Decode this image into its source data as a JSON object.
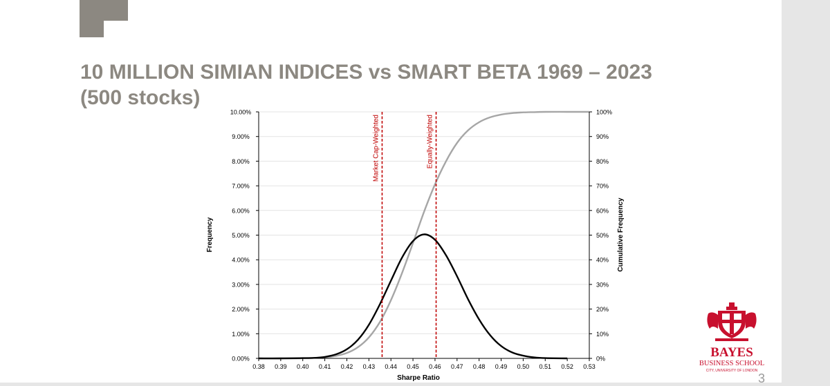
{
  "slide": {
    "title_line1": "10 MILLION SIMIAN INDICES vs SMART BETA 1969 – 2023",
    "title_line2": "(500 stocks)",
    "page_number": "3"
  },
  "logo": {
    "name": "BAYES",
    "line2": "BUSINESS SCHOOL",
    "line3": "CITY, UNIVERSITY OF LONDON",
    "color": "#c8102e"
  },
  "colors": {
    "title": "#8c8881",
    "brand_block": "#8c8881",
    "frequency_curve": "#000000",
    "cumulative_curve": "#a6a6a6",
    "reference_lines": "#c00000"
  },
  "chart_data": {
    "type": "line",
    "xlabel": "Sharpe Ratio",
    "ylabel": "Frequency",
    "y2label": "Cumulative Frequency",
    "xlim": [
      0.38,
      0.53
    ],
    "ylim": [
      0,
      0.1
    ],
    "y2lim": [
      0,
      1
    ],
    "x_ticks": [
      "0.38",
      "0.39",
      "0.40",
      "0.41",
      "0.42",
      "0.43",
      "0.44",
      "0.45",
      "0.46",
      "0.47",
      "0.48",
      "0.49",
      "0.50",
      "0.51",
      "0.52",
      "0.53"
    ],
    "y_ticks": [
      "0.00%",
      "1.00%",
      "2.00%",
      "3.00%",
      "4.00%",
      "5.00%",
      "6.00%",
      "7.00%",
      "8.00%",
      "9.00%",
      "10.00%"
    ],
    "y2_ticks": [
      "0%",
      "10%",
      "20%",
      "30%",
      "40%",
      "50%",
      "60%",
      "70%",
      "80%",
      "90%",
      "100%"
    ],
    "grid": true,
    "series": [
      {
        "name": "Frequency",
        "axis": "left",
        "x": [
          0.38,
          0.39,
          0.4,
          0.405,
          0.41,
          0.415,
          0.42,
          0.425,
          0.43,
          0.435,
          0.44,
          0.445,
          0.45,
          0.455,
          0.46,
          0.465,
          0.47,
          0.475,
          0.48,
          0.485,
          0.49,
          0.495,
          0.5,
          0.505,
          0.51,
          0.52
        ],
        "values": [
          0.0,
          0.0,
          0.0001,
          0.0002,
          0.0006,
          0.0016,
          0.0037,
          0.0075,
          0.0136,
          0.022,
          0.0315,
          0.0408,
          0.0476,
          0.0503,
          0.0481,
          0.0418,
          0.0333,
          0.024,
          0.0158,
          0.0094,
          0.005,
          0.0024,
          0.0011,
          0.0004,
          0.0001,
          0.0
        ]
      },
      {
        "name": "Cumulative Frequency",
        "axis": "right",
        "x": [
          0.38,
          0.39,
          0.4,
          0.41,
          0.415,
          0.42,
          0.425,
          0.43,
          0.435,
          0.44,
          0.445,
          0.45,
          0.455,
          0.46,
          0.465,
          0.47,
          0.475,
          0.48,
          0.485,
          0.49,
          0.495,
          0.5,
          0.505,
          0.51,
          0.52,
          0.53
        ],
        "values": [
          0.0,
          0.0,
          0.0005,
          0.004,
          0.01,
          0.022,
          0.045,
          0.085,
          0.148,
          0.236,
          0.345,
          0.468,
          0.594,
          0.706,
          0.8,
          0.874,
          0.925,
          0.958,
          0.978,
          0.989,
          0.995,
          0.998,
          0.999,
          1.0,
          1.0,
          1.0
        ]
      }
    ],
    "reference_lines": [
      {
        "label": "Market Cap-Weighted",
        "x": 0.436
      },
      {
        "label": "Equally-Weighted",
        "x": 0.4605
      }
    ]
  }
}
